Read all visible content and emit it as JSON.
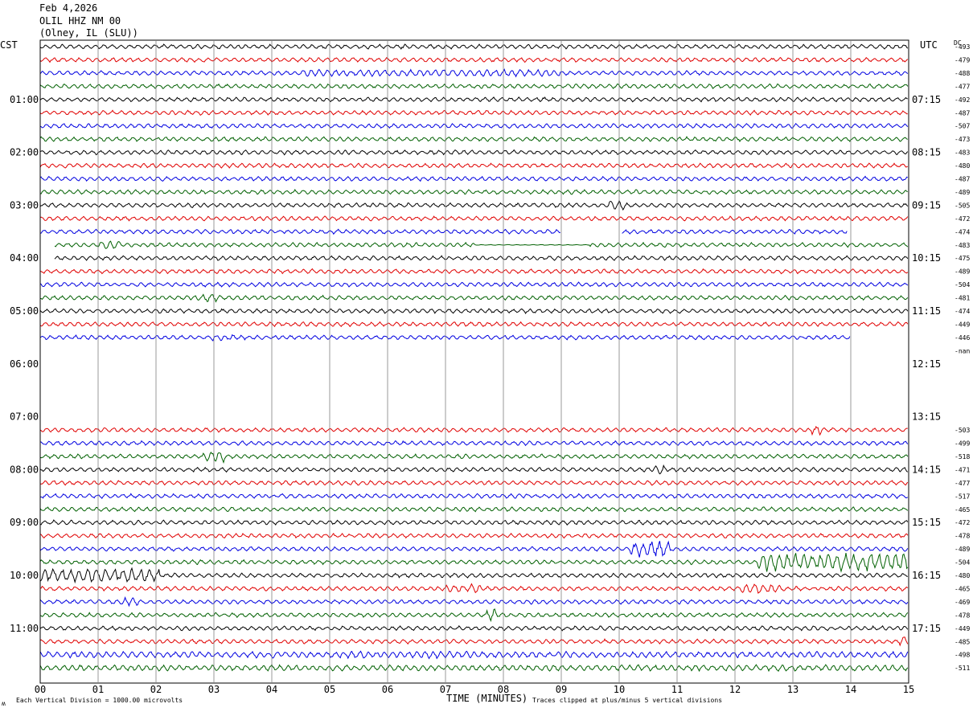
{
  "header": {
    "date": "Feb 4,2026",
    "station": "OLIL HHZ NM 00",
    "location": "(Olney, IL (SLU))"
  },
  "labels": {
    "left_tz": "CST",
    "right_tz": "UTC",
    "dc": "DC",
    "xlabel": "TIME (MINUTES)",
    "scale_note": "Each Vertical Division = 1000.00 microvolts",
    "clip_note": "Traces clipped at plus/minus 5 vertical divisions",
    "corner_mark": "ʍ"
  },
  "colors": [
    "#000000",
    "#e00000",
    "#0000e0",
    "#006000"
  ],
  "chart_data": {
    "type": "line",
    "x_ticks": [
      "00",
      "01",
      "02",
      "03",
      "04",
      "05",
      "06",
      "07",
      "08",
      "09",
      "10",
      "11",
      "12",
      "13",
      "14",
      "15"
    ],
    "xlim": [
      0,
      15
    ],
    "left_hours": [
      "01:00",
      "02:00",
      "03:00",
      "04:00",
      "05:00",
      "06:00",
      "07:00",
      "08:00",
      "09:00",
      "10:00",
      "11:00"
    ],
    "right_hours": [
      "07:15",
      "08:15",
      "09:15",
      "10:15",
      "11:15",
      "12:15",
      "13:15",
      "14:15",
      "15:15",
      "16:15",
      "17:15"
    ],
    "rows": [
      {
        "dc": "-493",
        "start": 0,
        "end": 15,
        "color": 0,
        "amp": 2.5
      },
      {
        "dc": "-479",
        "start": 0,
        "end": 15,
        "color": 1,
        "amp": 2.5
      },
      {
        "dc": "-488",
        "start": 0,
        "end": 15,
        "color": 2,
        "amp": 2.5,
        "bursts": [
          {
            "from": 4.5,
            "to": 9.0,
            "amp": 4
          }
        ]
      },
      {
        "dc": "-477",
        "start": 0,
        "end": 15,
        "color": 3,
        "amp": 2.5
      },
      {
        "dc": "-492",
        "start": 0,
        "end": 15,
        "color": 0,
        "amp": 2.5
      },
      {
        "dc": "-487",
        "start": 0,
        "end": 15,
        "color": 1,
        "amp": 2.5
      },
      {
        "dc": "-507",
        "start": 0,
        "end": 15,
        "color": 2,
        "amp": 2.5
      },
      {
        "dc": "-473",
        "start": 0,
        "end": 15,
        "color": 3,
        "amp": 2.5
      },
      {
        "dc": "-483",
        "start": 0,
        "end": 15,
        "color": 0,
        "amp": 2.5
      },
      {
        "dc": "-480",
        "start": 0,
        "end": 15,
        "color": 1,
        "amp": 2.5
      },
      {
        "dc": "-487",
        "start": 0,
        "end": 15,
        "color": 2,
        "amp": 2.5
      },
      {
        "dc": "-489",
        "start": 0,
        "end": 15,
        "color": 3,
        "amp": 2.5
      },
      {
        "dc": "-505",
        "start": 0,
        "end": 15,
        "color": 0,
        "amp": 2.5,
        "bursts": [
          {
            "from": 9.8,
            "to": 10.1,
            "amp": 6
          }
        ]
      },
      {
        "dc": "-472",
        "start": 0,
        "end": 15,
        "color": 1,
        "amp": 2.5
      },
      {
        "dc": "-474",
        "start": 0,
        "end": 15,
        "color": 2,
        "amp": 2.5,
        "gaps": [
          {
            "from": 9.0,
            "to": 10.05
          },
          {
            "from": 13.95,
            "to": 15
          }
        ]
      },
      {
        "dc": "-483",
        "start": 0.25,
        "end": 15,
        "color": 3,
        "amp": 2.5,
        "quiet": [
          {
            "from": 7.5,
            "to": 9.5
          }
        ],
        "bursts": [
          {
            "from": 1.0,
            "to": 1.4,
            "amp": 5
          }
        ]
      },
      {
        "dc": "-475",
        "start": 0.25,
        "end": 15,
        "color": 0,
        "amp": 2.5
      },
      {
        "dc": "-489",
        "start": 0,
        "end": 15,
        "color": 1,
        "amp": 2.5
      },
      {
        "dc": "-504",
        "start": 0,
        "end": 15,
        "color": 2,
        "amp": 2.5
      },
      {
        "dc": "-481",
        "start": 0,
        "end": 15,
        "color": 3,
        "amp": 2.5,
        "bursts": [
          {
            "from": 2.8,
            "to": 3.1,
            "amp": 5
          }
        ]
      },
      {
        "dc": "-474",
        "start": 0,
        "end": 15,
        "color": 0,
        "amp": 2.5
      },
      {
        "dc": "-449",
        "start": 0,
        "end": 15,
        "color": 1,
        "amp": 2.5
      },
      {
        "dc": "-446",
        "start": 0,
        "end": 14.0,
        "color": 2,
        "amp": 2.5,
        "bursts": [
          {
            "from": 2.9,
            "to": 3.4,
            "amp": 4
          }
        ]
      },
      {
        "dc": "-nan",
        "start": 0,
        "end": 0,
        "color": 3,
        "amp": 0
      },
      {
        "dc": "",
        "start": 0,
        "end": 0,
        "color": 0,
        "amp": 0
      },
      {
        "dc": "",
        "start": 0,
        "end": 0,
        "color": 1,
        "amp": 0
      },
      {
        "dc": "",
        "start": 0,
        "end": 0,
        "color": 2,
        "amp": 0
      },
      {
        "dc": "",
        "start": 0,
        "end": 0,
        "color": 3,
        "amp": 0
      },
      {
        "dc": "",
        "start": 0,
        "end": 0,
        "color": 0,
        "amp": 0
      },
      {
        "dc": "-503",
        "start": 0,
        "end": 15,
        "color": 1,
        "amp": 2.5,
        "bursts": [
          {
            "from": 13.3,
            "to": 13.5,
            "amp": 6
          }
        ]
      },
      {
        "dc": "-499",
        "start": 0,
        "end": 15,
        "color": 2,
        "amp": 2.5
      },
      {
        "dc": "-518",
        "start": 0,
        "end": 15,
        "color": 3,
        "amp": 2.5,
        "bursts": [
          {
            "from": 2.8,
            "to": 3.2,
            "amp": 7
          }
        ]
      },
      {
        "dc": "-471",
        "start": 0,
        "end": 15,
        "color": 0,
        "amp": 2.5,
        "bursts": [
          {
            "from": 10.6,
            "to": 10.8,
            "amp": 5
          }
        ]
      },
      {
        "dc": "-477",
        "start": 0,
        "end": 15,
        "color": 1,
        "amp": 2.5
      },
      {
        "dc": "-517",
        "start": 0,
        "end": 15,
        "color": 2,
        "amp": 2.5
      },
      {
        "dc": "-465",
        "start": 0,
        "end": 15,
        "color": 3,
        "amp": 2.5
      },
      {
        "dc": "-472",
        "start": 0,
        "end": 15,
        "color": 0,
        "amp": 2.5
      },
      {
        "dc": "-478",
        "start": 0,
        "end": 15,
        "color": 1,
        "amp": 2.5
      },
      {
        "dc": "-489",
        "start": 0,
        "end": 15,
        "color": 2,
        "amp": 2.5,
        "bursts": [
          {
            "from": 10.2,
            "to": 10.9,
            "amp": 9
          }
        ]
      },
      {
        "dc": "-504",
        "start": 0,
        "end": 15,
        "color": 3,
        "amp": 2.5,
        "bursts": [
          {
            "from": 12.4,
            "to": 15.0,
            "amp": 10
          }
        ]
      },
      {
        "dc": "-480",
        "start": 0,
        "end": 15,
        "color": 0,
        "amp": 2.5,
        "bursts": [
          {
            "from": 0.0,
            "to": 2.05,
            "amp": 8
          }
        ]
      },
      {
        "dc": "-465",
        "start": 0,
        "end": 15,
        "color": 1,
        "amp": 2.5,
        "bursts": [
          {
            "from": 7.0,
            "to": 7.6,
            "amp": 5
          },
          {
            "from": 12.1,
            "to": 12.8,
            "amp": 6
          }
        ]
      },
      {
        "dc": "-469",
        "start": 0,
        "end": 15,
        "color": 2,
        "amp": 2.5,
        "bursts": [
          {
            "from": 1.4,
            "to": 1.7,
            "amp": 5
          }
        ]
      },
      {
        "dc": "-478",
        "start": 0,
        "end": 15,
        "color": 3,
        "amp": 2.5,
        "bursts": [
          {
            "from": 7.7,
            "to": 7.9,
            "amp": 8
          }
        ]
      },
      {
        "dc": "-449",
        "start": 0,
        "end": 15,
        "color": 0,
        "amp": 2.5
      },
      {
        "dc": "-485",
        "start": 0,
        "end": 15,
        "color": 1,
        "amp": 2.5,
        "bursts": [
          {
            "from": 14.85,
            "to": 15.0,
            "amp": 6
          }
        ]
      },
      {
        "dc": "-498",
        "start": 0,
        "end": 15,
        "color": 2,
        "amp": 3.5,
        "bursts": [
          {
            "from": 5.0,
            "to": 7.5,
            "amp": 4
          }
        ]
      },
      {
        "dc": "-511",
        "start": 0,
        "end": 15,
        "color": 3,
        "amp": 3.5
      }
    ]
  }
}
